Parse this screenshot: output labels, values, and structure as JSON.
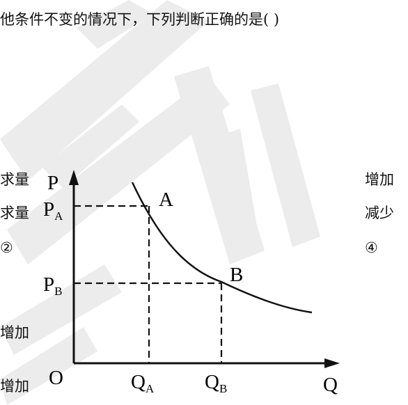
{
  "question_stem": "他条件不变的情况下，下列判断正确的是(      )",
  "left_fragments": {
    "line1": "求量",
    "line2": "求量",
    "line3": "②",
    "line4": "增加",
    "line5": "增加"
  },
  "right_options": {
    "line1": "增加",
    "line2": "减少",
    "line3": "④"
  },
  "graph": {
    "y_axis_label": "P",
    "x_axis_label": "Q",
    "origin_label": "O",
    "point_a_label": "A",
    "point_b_label": "B",
    "pa_main": "P",
    "pa_sub": "A",
    "pb_main": "P",
    "pb_sub": "B",
    "qa_main": "Q",
    "qa_sub": "A",
    "qb_main": "Q",
    "qb_sub": "B"
  },
  "colors": {
    "ink": "#111111",
    "watermark": "#e6e6e6"
  }
}
